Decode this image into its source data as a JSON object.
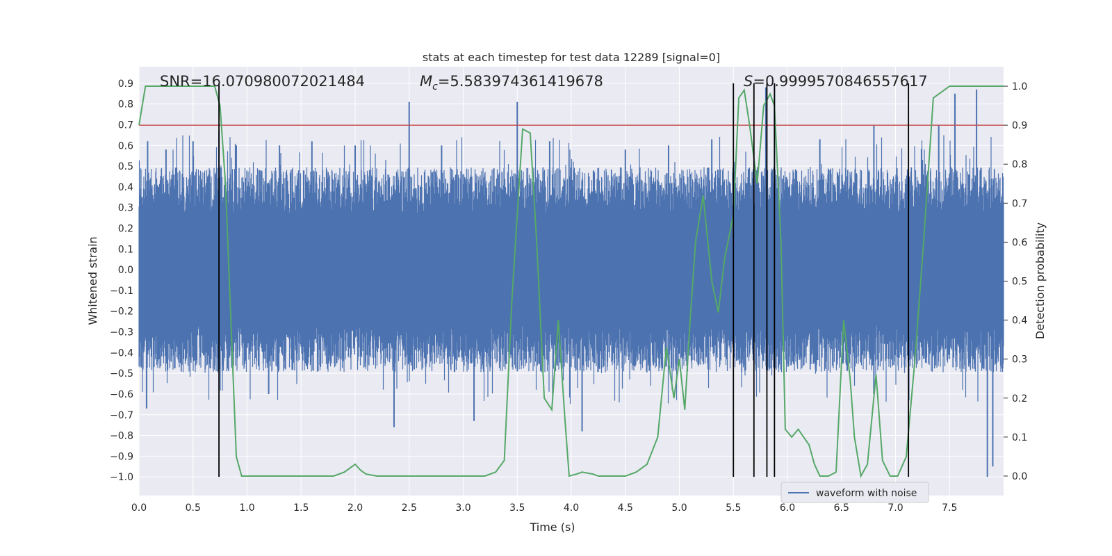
{
  "chart_data": {
    "type": "line",
    "title": "stats at each timestep for test data 12289 [signal=0]",
    "xlabel": "Time (s)",
    "ylabel_left": "Whitened strain",
    "ylabel_right": "Detection probability",
    "xlim": [
      0.0,
      8.0
    ],
    "ylim_left": [
      -1.09,
      0.98
    ],
    "ylim_right": [
      -0.05,
      1.05
    ],
    "x_ticks": [
      "0.0",
      "0.5",
      "1.0",
      "1.5",
      "2.0",
      "2.5",
      "3.0",
      "3.5",
      "4.0",
      "4.5",
      "5.0",
      "5.5",
      "6.0",
      "6.5",
      "7.0",
      "7.5"
    ],
    "y_left_ticks": [
      "0.9",
      "0.8",
      "0.7",
      "0.6",
      "0.5",
      "0.4",
      "0.3",
      "0.2",
      "0.1",
      "0.0",
      "−0.1",
      "−0.2",
      "−0.3",
      "−0.4",
      "−0.5",
      "−0.6",
      "−0.7",
      "−0.8",
      "−0.9",
      "−1.0"
    ],
    "y_right_ticks": [
      "1.0",
      "0.9",
      "0.8",
      "0.7",
      "0.6",
      "0.5",
      "0.4",
      "0.3",
      "0.2",
      "0.1",
      "0.0"
    ],
    "grid": true,
    "annotations": {
      "snr": "SNR=16.070980072021484",
      "mc_symbol": "M",
      "mc_subscript": "c",
      "mc_value": "=5.583974361419678",
      "s_symbol": "S",
      "s_value": "=0.9999570846557617"
    },
    "threshold": {
      "value": 0.9,
      "axis": "right",
      "color": "#c44e52"
    },
    "vertical_lines": [
      0.74,
      5.5,
      5.69,
      5.81,
      5.88,
      7.12
    ],
    "vline_range_left": [
      -1.0,
      0.9
    ],
    "waveform": {
      "name": "waveform with noise",
      "color": "#4c72b0",
      "band_low": -0.45,
      "band_high": 0.45,
      "spikes": [
        [
          0.08,
          0.62
        ],
        [
          0.25,
          0.58
        ],
        [
          0.5,
          0.62
        ],
        [
          0.74,
          0.67
        ],
        [
          0.9,
          0.6
        ],
        [
          1.3,
          0.6
        ],
        [
          1.6,
          0.62
        ],
        [
          2.0,
          0.6
        ],
        [
          2.36,
          -0.76
        ],
        [
          2.5,
          0.81
        ],
        [
          2.8,
          0.6
        ],
        [
          3.1,
          -0.73
        ],
        [
          3.5,
          0.81
        ],
        [
          3.8,
          0.62
        ],
        [
          4.1,
          -0.78
        ],
        [
          4.5,
          0.58
        ],
        [
          4.9,
          0.6
        ],
        [
          5.3,
          0.63
        ],
        [
          5.8,
          0.88
        ],
        [
          5.88,
          0.9
        ],
        [
          6.3,
          0.63
        ],
        [
          6.8,
          0.7
        ],
        [
          7.4,
          0.7
        ],
        [
          7.55,
          0.85
        ],
        [
          7.75,
          0.87
        ],
        [
          7.85,
          -1.0
        ],
        [
          7.9,
          -0.95
        ],
        [
          0.07,
          -0.67
        ],
        [
          1.2,
          -0.6
        ],
        [
          6.8,
          -0.6
        ]
      ]
    },
    "detection_probability": {
      "color": "#55a868",
      "x": [
        0.0,
        0.06,
        0.3,
        0.45,
        0.55,
        0.65,
        0.7,
        0.75,
        0.8,
        0.9,
        0.95,
        1.0,
        1.1,
        1.2,
        1.3,
        1.4,
        1.5,
        1.6,
        1.7,
        1.8,
        1.9,
        1.95,
        2.0,
        2.05,
        2.1,
        2.2,
        2.3,
        2.4,
        2.5,
        2.6,
        2.7,
        2.8,
        2.9,
        3.0,
        3.1,
        3.2,
        3.3,
        3.38,
        3.45,
        3.55,
        3.62,
        3.68,
        3.75,
        3.82,
        3.88,
        3.94,
        3.98,
        4.05,
        4.1,
        4.2,
        4.25,
        4.3,
        4.4,
        4.5,
        4.6,
        4.7,
        4.8,
        4.88,
        4.95,
        5.0,
        5.05,
        5.1,
        5.15,
        5.22,
        5.3,
        5.36,
        5.42,
        5.5,
        5.55,
        5.6,
        5.65,
        5.72,
        5.78,
        5.84,
        5.88,
        5.94,
        5.98,
        6.04,
        6.1,
        6.15,
        6.2,
        6.25,
        6.3,
        6.38,
        6.45,
        6.52,
        6.58,
        6.62,
        6.68,
        6.74,
        6.82,
        6.88,
        6.95,
        7.02,
        7.1,
        7.18,
        7.26,
        7.35,
        7.5,
        7.7,
        7.9,
        8.0
      ],
      "y": [
        0.9,
        1.0,
        1.0,
        1.0,
        1.0,
        1.0,
        1.0,
        0.95,
        0.75,
        0.05,
        0.0,
        0.0,
        0.0,
        0.0,
        0.0,
        0.0,
        0.0,
        0.0,
        0.0,
        0.0,
        0.01,
        0.02,
        0.03,
        0.015,
        0.005,
        0.0,
        0.0,
        0.0,
        0.0,
        0.0,
        0.0,
        0.0,
        0.0,
        0.0,
        0.0,
        0.0,
        0.01,
        0.04,
        0.45,
        0.89,
        0.88,
        0.6,
        0.2,
        0.17,
        0.4,
        0.15,
        0.0,
        0.005,
        0.01,
        0.005,
        0.0,
        0.0,
        0.0,
        0.0,
        0.01,
        0.03,
        0.1,
        0.33,
        0.2,
        0.3,
        0.17,
        0.4,
        0.6,
        0.72,
        0.5,
        0.42,
        0.56,
        0.67,
        0.97,
        0.99,
        0.9,
        0.75,
        0.95,
        0.98,
        0.95,
        0.6,
        0.12,
        0.1,
        0.12,
        0.1,
        0.08,
        0.03,
        0.0,
        0.0,
        0.01,
        0.4,
        0.25,
        0.1,
        0.0,
        0.03,
        0.26,
        0.04,
        0.0,
        0.0,
        0.05,
        0.3,
        0.6,
        0.97,
        1.0,
        1.0,
        1.0,
        1.0
      ]
    },
    "legend": {
      "label": "waveform with noise",
      "placement": "lower-right"
    }
  }
}
